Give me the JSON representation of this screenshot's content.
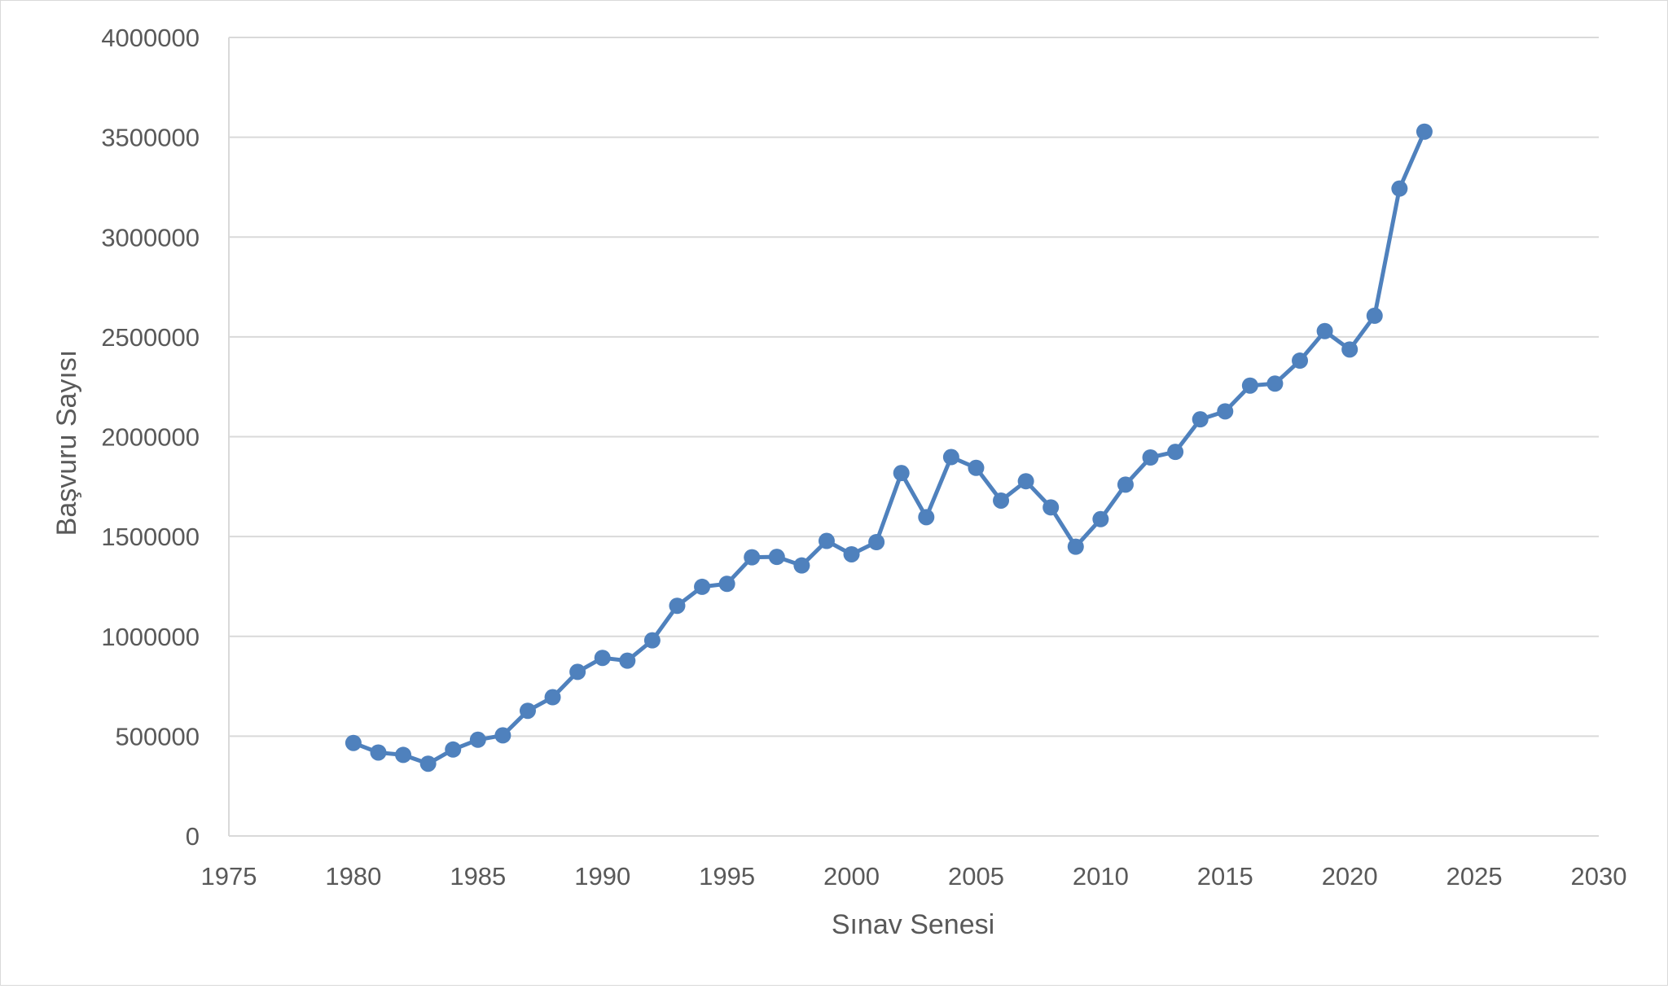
{
  "chart_data": {
    "type": "line",
    "title": "",
    "xlabel": "Sınav Senesi",
    "ylabel": "Başvuru Sayısı",
    "xlim": [
      1975,
      2030
    ],
    "ylim": [
      0,
      4000000
    ],
    "x_ticks": [
      "1975",
      "1980",
      "1985",
      "1990",
      "1995",
      "2000",
      "2005",
      "2010",
      "2015",
      "2020",
      "2025",
      "2030"
    ],
    "y_ticks": [
      "0",
      "500000",
      "1000000",
      "1500000",
      "2000000",
      "2500000",
      "3000000",
      "3500000",
      "4000000"
    ],
    "grid": true,
    "legend": "none",
    "colors": {
      "series": "#4f81bd",
      "grid": "#d9d9d9",
      "text": "#595959"
    },
    "series": [
      {
        "x": [
          1980,
          1981,
          1982,
          1983,
          1984,
          1985,
          1986,
          1987,
          1988,
          1989,
          1990,
          1991,
          1992,
          1993,
          1994,
          1995,
          1996,
          1997,
          1998,
          1999,
          2000,
          2001,
          2002,
          2003,
          2004,
          2005,
          2006,
          2007,
          2008,
          2009,
          2010,
          2011,
          2012,
          2013,
          2014,
          2015,
          2016,
          2017,
          2018,
          2019,
          2020,
          2021,
          2022,
          2023
        ],
        "values": [
          466000,
          418000,
          406000,
          362000,
          433000,
          482000,
          504000,
          627000,
          695000,
          822000,
          892000,
          878000,
          980000,
          1153000,
          1248000,
          1263000,
          1396000,
          1398000,
          1355000,
          1478000,
          1411000,
          1472000,
          1818000,
          1597000,
          1898000,
          1844000,
          1680000,
          1777000,
          1646000,
          1449000,
          1587000,
          1760000,
          1896000,
          1924000,
          2087000,
          2127000,
          2256000,
          2266000,
          2381000,
          2529000,
          2437000,
          2606000,
          3243000,
          3528000
        ]
      }
    ]
  }
}
